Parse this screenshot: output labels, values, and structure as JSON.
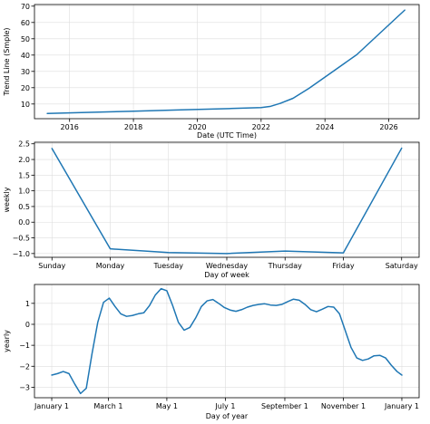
{
  "chart_data": [
    {
      "type": "line",
      "xlabel": "Date (UTC Time)",
      "ylabel": "Trend Line (Smple)",
      "x_tick_labels": [
        "2016",
        "2018",
        "2020",
        "2022",
        "2024",
        "2026"
      ],
      "x_tick_values": [
        2016,
        2018,
        2020,
        2022,
        2024,
        2026
      ],
      "y_tick_labels": [
        "10",
        "20",
        "30",
        "40",
        "50",
        "60",
        "70"
      ],
      "y_tick_values": [
        10,
        20,
        30,
        40,
        50,
        60,
        70
      ],
      "xlim": [
        2014.9,
        2026.95
      ],
      "ylim": [
        1.0,
        71.0
      ],
      "grid": true,
      "color": "#1f77b4",
      "x": [
        2015.3,
        2016.5,
        2018.0,
        2019.5,
        2021.0,
        2022.0,
        2022.3,
        2022.6,
        2023.0,
        2023.5,
        2024.0,
        2025.0,
        2026.5
      ],
      "y": [
        4.2,
        4.8,
        5.6,
        6.4,
        7.2,
        7.8,
        8.6,
        10.4,
        13.5,
        19.6,
        26.5,
        40.3,
        67.6
      ]
    },
    {
      "type": "line",
      "xlabel": "Day of week",
      "ylabel": "weekly",
      "categories": [
        "Sunday",
        "Monday",
        "Tuesday",
        "Wednesday",
        "Thursday",
        "Friday",
        "Saturday"
      ],
      "x_tick_labels": [
        "Sunday",
        "Monday",
        "Tuesday",
        "Wednesday",
        "Thursday",
        "Friday",
        "Saturday"
      ],
      "y_tick_labels": [
        "−1.0",
        "−0.5",
        "0.0",
        "0.5",
        "1.0",
        "1.5",
        "2.0",
        "2.5"
      ],
      "y_tick_values": [
        -1.0,
        -0.5,
        0.0,
        0.5,
        1.0,
        1.5,
        2.0,
        2.5
      ],
      "ylim": [
        -1.12,
        2.55
      ],
      "grid": true,
      "color": "#1f77b4",
      "values": [
        2.35,
        -0.85,
        -0.97,
        -1.0,
        -0.92,
        -0.98,
        2.36
      ]
    },
    {
      "type": "line",
      "xlabel": "Day of year",
      "ylabel": "yearly",
      "x_tick_labels": [
        "January 1",
        "March 1",
        "May 1",
        "July 1",
        "September 1",
        "November 1",
        "January 1"
      ],
      "x_tick_values": [
        0,
        59,
        120,
        181,
        243,
        304,
        365
      ],
      "y_tick_labels": [
        "−3",
        "−2",
        "−1",
        "0",
        "1"
      ],
      "y_tick_values": [
        -3,
        -2,
        -1,
        0,
        1
      ],
      "xlim": [
        -18,
        383
      ],
      "ylim": [
        -3.5,
        1.9
      ],
      "grid": true,
      "color": "#1f77b4",
      "x": [
        0,
        6,
        12,
        18,
        24,
        30,
        36,
        42,
        48,
        54,
        60,
        66,
        72,
        78,
        84,
        90,
        96,
        102,
        108,
        114,
        120,
        126,
        132,
        138,
        144,
        150,
        156,
        162,
        168,
        174,
        180,
        186,
        192,
        198,
        204,
        210,
        216,
        222,
        228,
        234,
        240,
        246,
        252,
        258,
        264,
        270,
        276,
        282,
        288,
        294,
        300,
        306,
        312,
        318,
        324,
        330,
        336,
        342,
        348,
        354,
        360,
        365
      ],
      "y": [
        -2.42,
        -2.35,
        -2.25,
        -2.35,
        -2.85,
        -3.3,
        -3.05,
        -1.4,
        0.1,
        1.05,
        1.25,
        0.85,
        0.5,
        0.38,
        0.42,
        0.5,
        0.55,
        0.9,
        1.4,
        1.7,
        1.6,
        0.9,
        0.1,
        -0.28,
        -0.15,
        0.3,
        0.85,
        1.12,
        1.18,
        1.0,
        0.8,
        0.68,
        0.62,
        0.7,
        0.82,
        0.9,
        0.95,
        0.98,
        0.92,
        0.9,
        0.95,
        1.08,
        1.2,
        1.15,
        0.95,
        0.7,
        0.6,
        0.72,
        0.85,
        0.82,
        0.5,
        -0.3,
        -1.1,
        -1.6,
        -1.72,
        -1.65,
        -1.5,
        -1.48,
        -1.6,
        -1.95,
        -2.25,
        -2.42
      ]
    }
  ]
}
